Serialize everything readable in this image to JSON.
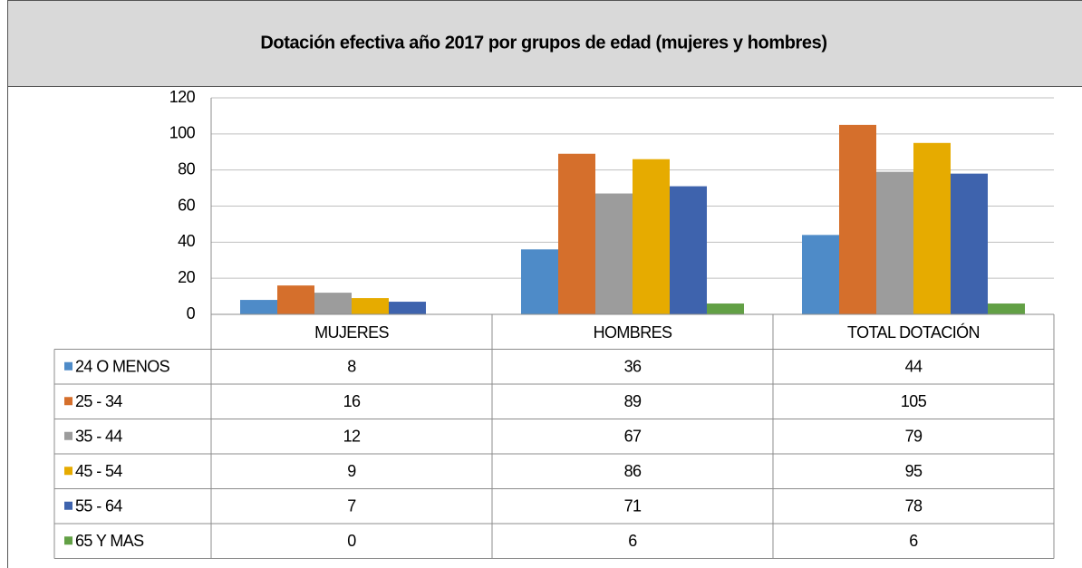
{
  "chart_data": {
    "type": "bar",
    "title": "Dotación efectiva año 2017 por grupos de edad (mujeres y hombres)",
    "categories": [
      "MUJERES",
      "HOMBRES",
      "TOTAL DOTACIÓN"
    ],
    "series": [
      {
        "name": "24 O MENOS",
        "color": "#4e8bc8",
        "values": [
          8,
          36,
          44
        ]
      },
      {
        "name": "25 - 34",
        "color": "#d56f2c",
        "values": [
          16,
          89,
          105
        ]
      },
      {
        "name": "35 - 44",
        "color": "#9c9c9c",
        "values": [
          12,
          67,
          79
        ]
      },
      {
        "name": "45 - 54",
        "color": "#e6ab00",
        "values": [
          9,
          86,
          95
        ]
      },
      {
        "name": "55 - 64",
        "color": "#3e63ad",
        "values": [
          7,
          71,
          78
        ]
      },
      {
        "name": "65 Y MAS",
        "color": "#62a045",
        "values": [
          0,
          6,
          6
        ]
      }
    ],
    "ylim": [
      0,
      120
    ],
    "yticks": [
      0,
      20,
      40,
      60,
      80,
      100,
      120
    ],
    "grid": true
  }
}
